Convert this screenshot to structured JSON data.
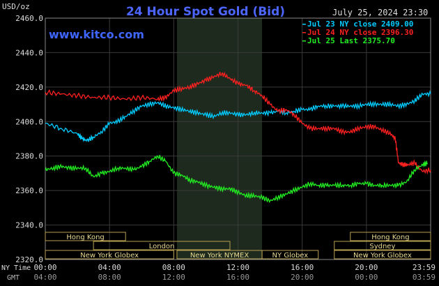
{
  "chart_data": {
    "type": "line",
    "title": "24 Hour Spot Gold (Bid)",
    "brand": "www.kitco.com",
    "date_stamp": "July 25, 2024 23:30",
    "unit": "USD/oz",
    "ylim": [
      2320,
      2460
    ],
    "y_ticks": [
      "2460.0",
      "2440.0",
      "2420.0",
      "2400.0",
      "2380.0",
      "2360.0",
      "2340.0",
      "2320.0"
    ],
    "x_ticks_ny": [
      "00:00",
      "04:00",
      "08:00",
      "12:00",
      "16:00",
      "20:00",
      "23:59"
    ],
    "x_ticks_gmt": [
      "04:00",
      "08:00",
      "12:00",
      "16:00",
      "20:00",
      "00:00",
      "03:59"
    ],
    "x_axis_labels": {
      "ny": "NY Time",
      "gmt": "GMT"
    },
    "legend": [
      {
        "label": "Jul 23 NY close 2409.00",
        "color": "#00ccff"
      },
      {
        "label": "Jul 24 NY close 2396.30",
        "color": "#ff2020"
      },
      {
        "label": "Jul 25 Last 2375.70",
        "color": "#22ee22"
      }
    ],
    "series": [
      {
        "name": "Jul 23",
        "color": "#00ccff",
        "x": [
          0,
          1,
          2,
          2.3,
          2.6,
          3,
          3.5,
          4,
          4.5,
          5,
          5.5,
          6,
          6.5,
          7,
          7.5,
          8,
          8.5,
          9,
          9.5,
          10,
          10.5,
          11,
          11.5,
          12,
          12.5,
          13,
          13.5,
          14,
          14.5,
          15,
          15.5,
          16,
          16.5,
          17,
          17.5,
          18,
          18.5,
          19,
          19.5,
          20,
          20.5,
          21,
          21.5,
          22,
          22.5,
          23,
          23.5,
          24
        ],
        "y": [
          2399,
          2396,
          2393,
          2390,
          2389,
          2391,
          2394,
          2399,
          2400,
          2403,
          2406,
          2409,
          2410,
          2411,
          2409,
          2408,
          2407,
          2406,
          2405,
          2404,
          2403,
          2405,
          2405,
          2404,
          2404,
          2405,
          2405,
          2405,
          2406,
          2405,
          2406,
          2407,
          2407,
          2409,
          2409,
          2409,
          2409,
          2409,
          2409,
          2410,
          2410,
          2410,
          2410,
          2409,
          2410,
          2412,
          2416,
          2416
        ]
      },
      {
        "name": "Jul 24",
        "color": "#ff2020",
        "x": [
          0,
          1,
          2,
          3,
          4,
          5,
          6,
          7,
          7.5,
          8,
          8.5,
          9,
          9.5,
          10,
          10.5,
          11,
          11.5,
          12,
          12.5,
          13,
          13.5,
          14,
          14.5,
          15,
          15.5,
          16,
          16.5,
          17,
          17.5,
          18,
          18.5,
          19,
          19.5,
          20,
          20.5,
          21,
          21.5,
          21.8,
          22,
          22.3,
          22.6,
          23,
          23.5,
          24
        ],
        "y": [
          2417,
          2416,
          2415,
          2414,
          2414,
          2413,
          2414,
          2413,
          2414,
          2418,
          2419,
          2420,
          2422,
          2424,
          2426,
          2428,
          2425,
          2422,
          2421,
          2418,
          2415,
          2410,
          2406,
          2407,
          2404,
          2399,
          2396,
          2396,
          2396,
          2396,
          2394,
          2394,
          2396,
          2397,
          2397,
          2395,
          2393,
          2390,
          2376,
          2375,
          2375,
          2376,
          2371,
          2372
        ]
      },
      {
        "name": "Jul 25",
        "color": "#22ee22",
        "x": [
          0,
          0.5,
          1,
          1.5,
          2,
          2.5,
          3,
          3.5,
          4,
          4.5,
          5,
          5.5,
          6,
          6.5,
          7,
          7.5,
          8,
          8.5,
          9,
          9.5,
          10,
          10.5,
          11,
          11.5,
          12,
          12.5,
          13,
          13.5,
          14,
          14.5,
          15,
          15.5,
          16,
          16.5,
          17,
          17.5,
          18,
          18.5,
          19,
          19.5,
          20,
          20.5,
          21,
          21.5,
          22,
          22.5,
          23,
          23.5,
          23.8
        ],
        "y": [
          2372,
          2373,
          2374,
          2373,
          2373,
          2373,
          2368,
          2370,
          2371,
          2373,
          2373,
          2372,
          2374,
          2377,
          2380,
          2377,
          2370,
          2369,
          2366,
          2365,
          2363,
          2362,
          2361,
          2361,
          2359,
          2357,
          2357,
          2356,
          2354,
          2356,
          2358,
          2360,
          2362,
          2364,
          2363,
          2363,
          2363,
          2363,
          2363,
          2364,
          2364,
          2363,
          2363,
          2363,
          2363,
          2365,
          2372,
          2375,
          2376
        ]
      }
    ],
    "sessions": [
      {
        "name": "Hong Kong",
        "start": -3,
        "end": 5,
        "row": 0
      },
      {
        "name": "London",
        "start": 3,
        "end": 11.5,
        "row": 1
      },
      {
        "name": "New York Globex",
        "start": -3,
        "end": 8,
        "row": 2
      },
      {
        "name": "New York NYMEX",
        "start": 8.2,
        "end": 13.5,
        "row": 2
      },
      {
        "name": "NY Globex",
        "start": 13.5,
        "end": 17,
        "row": 2
      },
      {
        "name": "Hong Kong",
        "start": 19,
        "end": 26,
        "row": 0
      },
      {
        "name": "Sydney",
        "start": 18,
        "end": 26,
        "row": 1
      },
      {
        "name": "New York Globex",
        "start": 18,
        "end": 26,
        "row": 2
      }
    ],
    "highlight_band": [
      8.2,
      13.5
    ],
    "grid": true,
    "legend_placement": "top-right"
  }
}
